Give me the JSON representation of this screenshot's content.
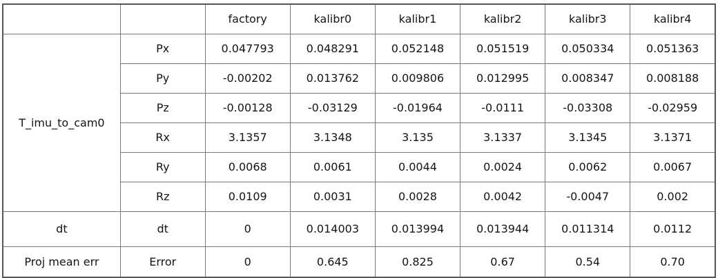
{
  "chart_data": {
    "type": "table",
    "columns": [
      "",
      "",
      "factory",
      "kalibr0",
      "kalibr1",
      "kalibr2",
      "kalibr3",
      "kalibr4"
    ],
    "groups": [
      {
        "name": "T_imu_to_cam0",
        "rows": [
          {
            "label": "Px",
            "values": [
              "0.047793",
              "0.048291",
              "0.052148",
              "0.051519",
              "0.050334",
              "0.051363"
            ]
          },
          {
            "label": "Py",
            "values": [
              "-0.00202",
              "0.013762",
              "0.009806",
              "0.012995",
              "0.008347",
              "0.008188"
            ]
          },
          {
            "label": "Pz",
            "values": [
              "-0.00128",
              "-0.03129",
              "-0.01964",
              "-0.0111",
              "-0.03308",
              "-0.02959"
            ]
          },
          {
            "label": "Rx",
            "values": [
              "3.1357",
              "3.1348",
              "3.135",
              "3.1337",
              "3.1345",
              "3.1371"
            ]
          },
          {
            "label": "Ry",
            "values": [
              "0.0068",
              "0.0061",
              "0.0044",
              "0.0024",
              "0.0062",
              "0.0067"
            ]
          },
          {
            "label": "Rz",
            "values": [
              "0.0109",
              "0.0031",
              "0.0028",
              "0.0042",
              "-0.0047",
              "0.002"
            ]
          }
        ]
      },
      {
        "name": "dt",
        "rows": [
          {
            "label": "dt",
            "values": [
              "0",
              "0.014003",
              "0.013994",
              "0.013944",
              "0.011314",
              "0.0112"
            ]
          }
        ]
      },
      {
        "name": "Proj mean err",
        "rows": [
          {
            "label": "Error",
            "values": [
              "0",
              "0.645",
              "0.825",
              "0.67",
              "0.54",
              "0.70"
            ]
          }
        ]
      }
    ],
    "layout": {
      "grid": "on",
      "border_color": "#777777",
      "background": "#ffffff",
      "text_color": "#141414"
    }
  }
}
